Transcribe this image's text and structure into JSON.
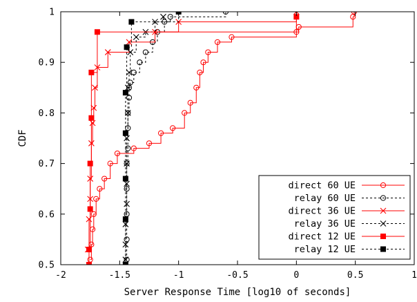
{
  "chart_data": {
    "type": "line",
    "xlabel": "Server Response Time [log10 of seconds]",
    "ylabel": "CDF",
    "xlim": [
      -2,
      1
    ],
    "ylim": [
      0.5,
      1
    ],
    "x_ticks": [
      -2,
      -1.5,
      -1,
      -0.5,
      0,
      0.5,
      1
    ],
    "y_ticks": [
      0.5,
      0.6,
      0.7,
      0.8,
      0.9,
      1
    ],
    "x_tick_labels": [
      "-2",
      "-1.5",
      "-1",
      "-0.5",
      "0",
      "0.5",
      "1"
    ],
    "y_tick_labels": [
      "0.5",
      "0.6",
      "0.7",
      "0.8",
      "0.9",
      "1"
    ],
    "grid": false,
    "legend_position": "bottom-right",
    "series": [
      {
        "name": "direct 60 UE",
        "color": "#ff0000",
        "dash": "solid",
        "marker": "circle-open",
        "points": [
          [
            -1.75,
            0.51
          ],
          [
            -1.74,
            0.54
          ],
          [
            -1.73,
            0.57
          ],
          [
            -1.72,
            0.6
          ],
          [
            -1.7,
            0.63
          ],
          [
            -1.67,
            0.65
          ],
          [
            -1.63,
            0.67
          ],
          [
            -1.58,
            0.7
          ],
          [
            -1.52,
            0.72
          ],
          [
            -1.38,
            0.73
          ],
          [
            -1.25,
            0.74
          ],
          [
            -1.15,
            0.76
          ],
          [
            -1.05,
            0.77
          ],
          [
            -0.95,
            0.8
          ],
          [
            -0.9,
            0.82
          ],
          [
            -0.85,
            0.85
          ],
          [
            -0.82,
            0.88
          ],
          [
            -0.79,
            0.9
          ],
          [
            -0.75,
            0.92
          ],
          [
            -0.67,
            0.94
          ],
          [
            -0.55,
            0.95
          ],
          [
            0,
            0.96
          ],
          [
            0.02,
            0.97
          ],
          [
            0.48,
            0.99
          ],
          [
            0.49,
            1
          ]
        ]
      },
      {
        "name": "relay 60 UE",
        "color": "#000000",
        "dash": "dashed",
        "marker": "circle-open",
        "points": [
          [
            -1.44,
            0.51
          ],
          [
            -1.44,
            0.55
          ],
          [
            -1.44,
            0.6
          ],
          [
            -1.44,
            0.65
          ],
          [
            -1.44,
            0.7
          ],
          [
            -1.43,
            0.73
          ],
          [
            -1.43,
            0.77
          ],
          [
            -1.43,
            0.8
          ],
          [
            -1.42,
            0.83
          ],
          [
            -1.42,
            0.85
          ],
          [
            -1.41,
            0.86
          ],
          [
            -1.38,
            0.88
          ],
          [
            -1.33,
            0.9
          ],
          [
            -1.28,
            0.92
          ],
          [
            -1.22,
            0.94
          ],
          [
            -1.18,
            0.96
          ],
          [
            -1.12,
            0.98
          ],
          [
            -1.07,
            0.99
          ],
          [
            -0.6,
            1
          ]
        ]
      },
      {
        "name": "direct 36 UE",
        "color": "#ff0000",
        "dash": "solid",
        "marker": "x",
        "points": [
          [
            -1.77,
            0.53
          ],
          [
            -1.76,
            0.59
          ],
          [
            -1.75,
            0.63
          ],
          [
            -1.75,
            0.67
          ],
          [
            -1.74,
            0.74
          ],
          [
            -1.73,
            0.78
          ],
          [
            -1.72,
            0.81
          ],
          [
            -1.71,
            0.85
          ],
          [
            -1.69,
            0.89
          ],
          [
            -1.6,
            0.92
          ],
          [
            -1.42,
            0.94
          ],
          [
            -1.2,
            0.96
          ],
          [
            -1.0,
            0.98
          ],
          [
            0,
            1
          ]
        ]
      },
      {
        "name": "relay 36 UE",
        "color": "#000000",
        "dash": "dashed",
        "marker": "x",
        "points": [
          [
            -1.45,
            0.51
          ],
          [
            -1.45,
            0.54
          ],
          [
            -1.45,
            0.58
          ],
          [
            -1.44,
            0.62
          ],
          [
            -1.44,
            0.66
          ],
          [
            -1.44,
            0.7
          ],
          [
            -1.44,
            0.75
          ],
          [
            -1.43,
            0.8
          ],
          [
            -1.43,
            0.85
          ],
          [
            -1.42,
            0.88
          ],
          [
            -1.41,
            0.92
          ],
          [
            -1.36,
            0.95
          ],
          [
            -1.28,
            0.96
          ],
          [
            -1.2,
            0.98
          ],
          [
            -1.13,
            0.99
          ]
        ]
      },
      {
        "name": "direct 12 UE",
        "color": "#ff0000",
        "dash": "solid",
        "marker": "square-filled",
        "points": [
          [
            -1.76,
            0.5
          ],
          [
            -1.76,
            0.53
          ],
          [
            -1.75,
            0.61
          ],
          [
            -1.75,
            0.7
          ],
          [
            -1.74,
            0.79
          ],
          [
            -1.74,
            0.88
          ],
          [
            -1.69,
            0.96
          ],
          [
            0,
            0.99
          ]
        ]
      },
      {
        "name": "relay 12 UE",
        "color": "#000000",
        "dash": "dashed",
        "marker": "square-filled",
        "points": [
          [
            -1.45,
            0.5
          ],
          [
            -1.45,
            0.59
          ],
          [
            -1.45,
            0.67
          ],
          [
            -1.45,
            0.76
          ],
          [
            -1.45,
            0.84
          ],
          [
            -1.44,
            0.93
          ],
          [
            -1.4,
            0.98
          ],
          [
            -1.0,
            1
          ]
        ]
      }
    ]
  }
}
